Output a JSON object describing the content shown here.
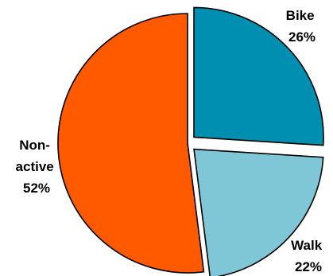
{
  "chart_data": {
    "type": "pie",
    "title": "",
    "legend": "none (labels placed next to slices)",
    "slices": [
      {
        "label_lines": [
          "Bike",
          "26%"
        ],
        "value": 26,
        "color": "#008fb0",
        "exploded": true
      },
      {
        "label_lines": [
          "Walk",
          "22%"
        ],
        "value": 22,
        "color": "#7fc6d6",
        "exploded": true
      },
      {
        "label_lines": [
          "Non-",
          "active",
          "52%"
        ],
        "value": 52,
        "color": "#ff5a00",
        "exploded": false
      }
    ]
  }
}
